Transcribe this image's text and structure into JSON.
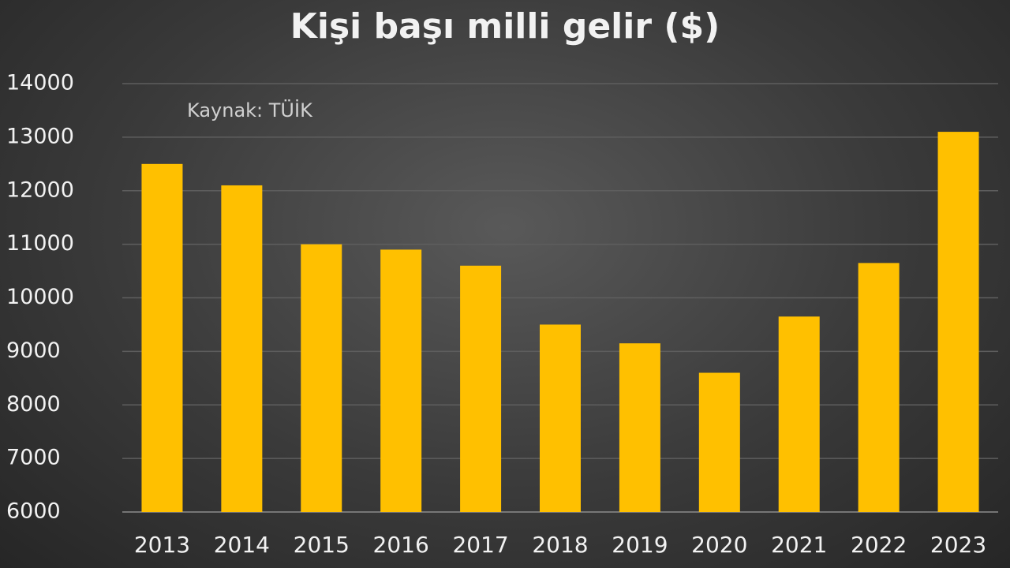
{
  "chart_data": {
    "type": "bar",
    "title": "Kişi başı milli gelir ($)",
    "subtitle": "Kaynak: TÜİK",
    "categories": [
      "2013",
      "2014",
      "2015",
      "2016",
      "2017",
      "2018",
      "2019",
      "2020",
      "2021",
      "2022",
      "2023"
    ],
    "values": [
      12500,
      12100,
      11000,
      10900,
      10600,
      9500,
      9150,
      8600,
      9650,
      10650,
      13100
    ],
    "color": "#ffc000",
    "ylim": [
      6000,
      14000
    ],
    "yticks": [
      6000,
      7000,
      8000,
      9000,
      10000,
      11000,
      12000,
      13000,
      14000
    ],
    "grid": true
  }
}
